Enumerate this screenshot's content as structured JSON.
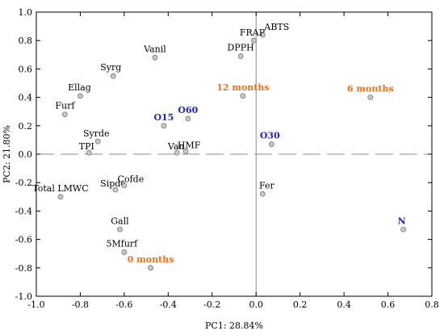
{
  "chart_data": {
    "type": "scatter",
    "title": "",
    "xlabel": "PC1: 28.84%",
    "ylabel": "PC2: 21.80%",
    "xlim": [
      -1.0,
      0.8
    ],
    "ylim": [
      -1.0,
      1.0
    ],
    "xticks": [
      "-1.0",
      "-0.8",
      "-0.6",
      "-0.4",
      "-0.2",
      "0.0",
      "0.2",
      "0.4",
      "0.6",
      "0.8"
    ],
    "yticks": [
      "1.0",
      "0.8",
      "0.6",
      "0.4",
      "0.2",
      "0.0",
      "-0.2",
      "-0.4",
      "-0.6",
      "-0.8",
      "-1.0"
    ],
    "xtick_values": [
      -1.0,
      -0.8,
      -0.6,
      -0.4,
      -0.2,
      0.0,
      0.2,
      0.4,
      0.6,
      0.8
    ],
    "ytick_values": [
      1.0,
      0.8,
      0.6,
      0.4,
      0.2,
      0.0,
      -0.2,
      -0.4,
      -0.6,
      -0.8,
      -1.0
    ],
    "grid": false,
    "zero_lines": true,
    "marker_color": "#c8c8c8",
    "colors": {
      "variable": "#000000",
      "time": "#e8731e",
      "treatment": "#1f28b4"
    },
    "points": [
      {
        "label": "ABTS",
        "x": 0.03,
        "y": 0.84,
        "group": "variable"
      },
      {
        "label": "FRAP",
        "x": -0.01,
        "y": 0.8,
        "group": "variable"
      },
      {
        "label": "DPPH",
        "x": -0.07,
        "y": 0.69,
        "group": "variable"
      },
      {
        "label": "Vanil",
        "x": -0.46,
        "y": 0.68,
        "group": "variable"
      },
      {
        "label": "Syrg",
        "x": -0.65,
        "y": 0.55,
        "group": "variable"
      },
      {
        "label": "Ellag",
        "x": -0.8,
        "y": 0.41,
        "group": "variable"
      },
      {
        "label": "Furf",
        "x": -0.87,
        "y": 0.28,
        "group": "variable"
      },
      {
        "label": "Syrde",
        "x": -0.72,
        "y": 0.09,
        "group": "variable"
      },
      {
        "label": "TPI",
        "x": -0.76,
        "y": 0.01,
        "group": "variable"
      },
      {
        "label": "Van",
        "x": -0.36,
        "y": 0.01,
        "group": "variable"
      },
      {
        "label": "HMF",
        "x": -0.32,
        "y": 0.02,
        "group": "variable"
      },
      {
        "label": "Total LMWC",
        "x": -0.89,
        "y": -0.3,
        "group": "variable"
      },
      {
        "label": "Sipde",
        "x": -0.64,
        "y": -0.25,
        "group": "variable"
      },
      {
        "label": "Cofde",
        "x": -0.6,
        "y": -0.22,
        "group": "variable"
      },
      {
        "label": "Fer",
        "x": 0.03,
        "y": -0.28,
        "group": "variable"
      },
      {
        "label": "Gall",
        "x": -0.62,
        "y": -0.53,
        "group": "variable"
      },
      {
        "label": "5Mfurf",
        "x": -0.6,
        "y": -0.69,
        "group": "variable"
      },
      {
        "label": "12 months",
        "x": -0.06,
        "y": 0.41,
        "group": "time"
      },
      {
        "label": "6 months",
        "x": 0.52,
        "y": 0.4,
        "group": "time"
      },
      {
        "label": "0 months",
        "x": -0.48,
        "y": -0.8,
        "group": "time"
      },
      {
        "label": "O15",
        "x": -0.42,
        "y": 0.2,
        "group": "treatment"
      },
      {
        "label": "O60",
        "x": -0.31,
        "y": 0.25,
        "group": "treatment"
      },
      {
        "label": "O30",
        "x": 0.07,
        "y": 0.07,
        "group": "treatment"
      },
      {
        "label": "N",
        "x": 0.67,
        "y": -0.53,
        "group": "treatment"
      }
    ]
  }
}
